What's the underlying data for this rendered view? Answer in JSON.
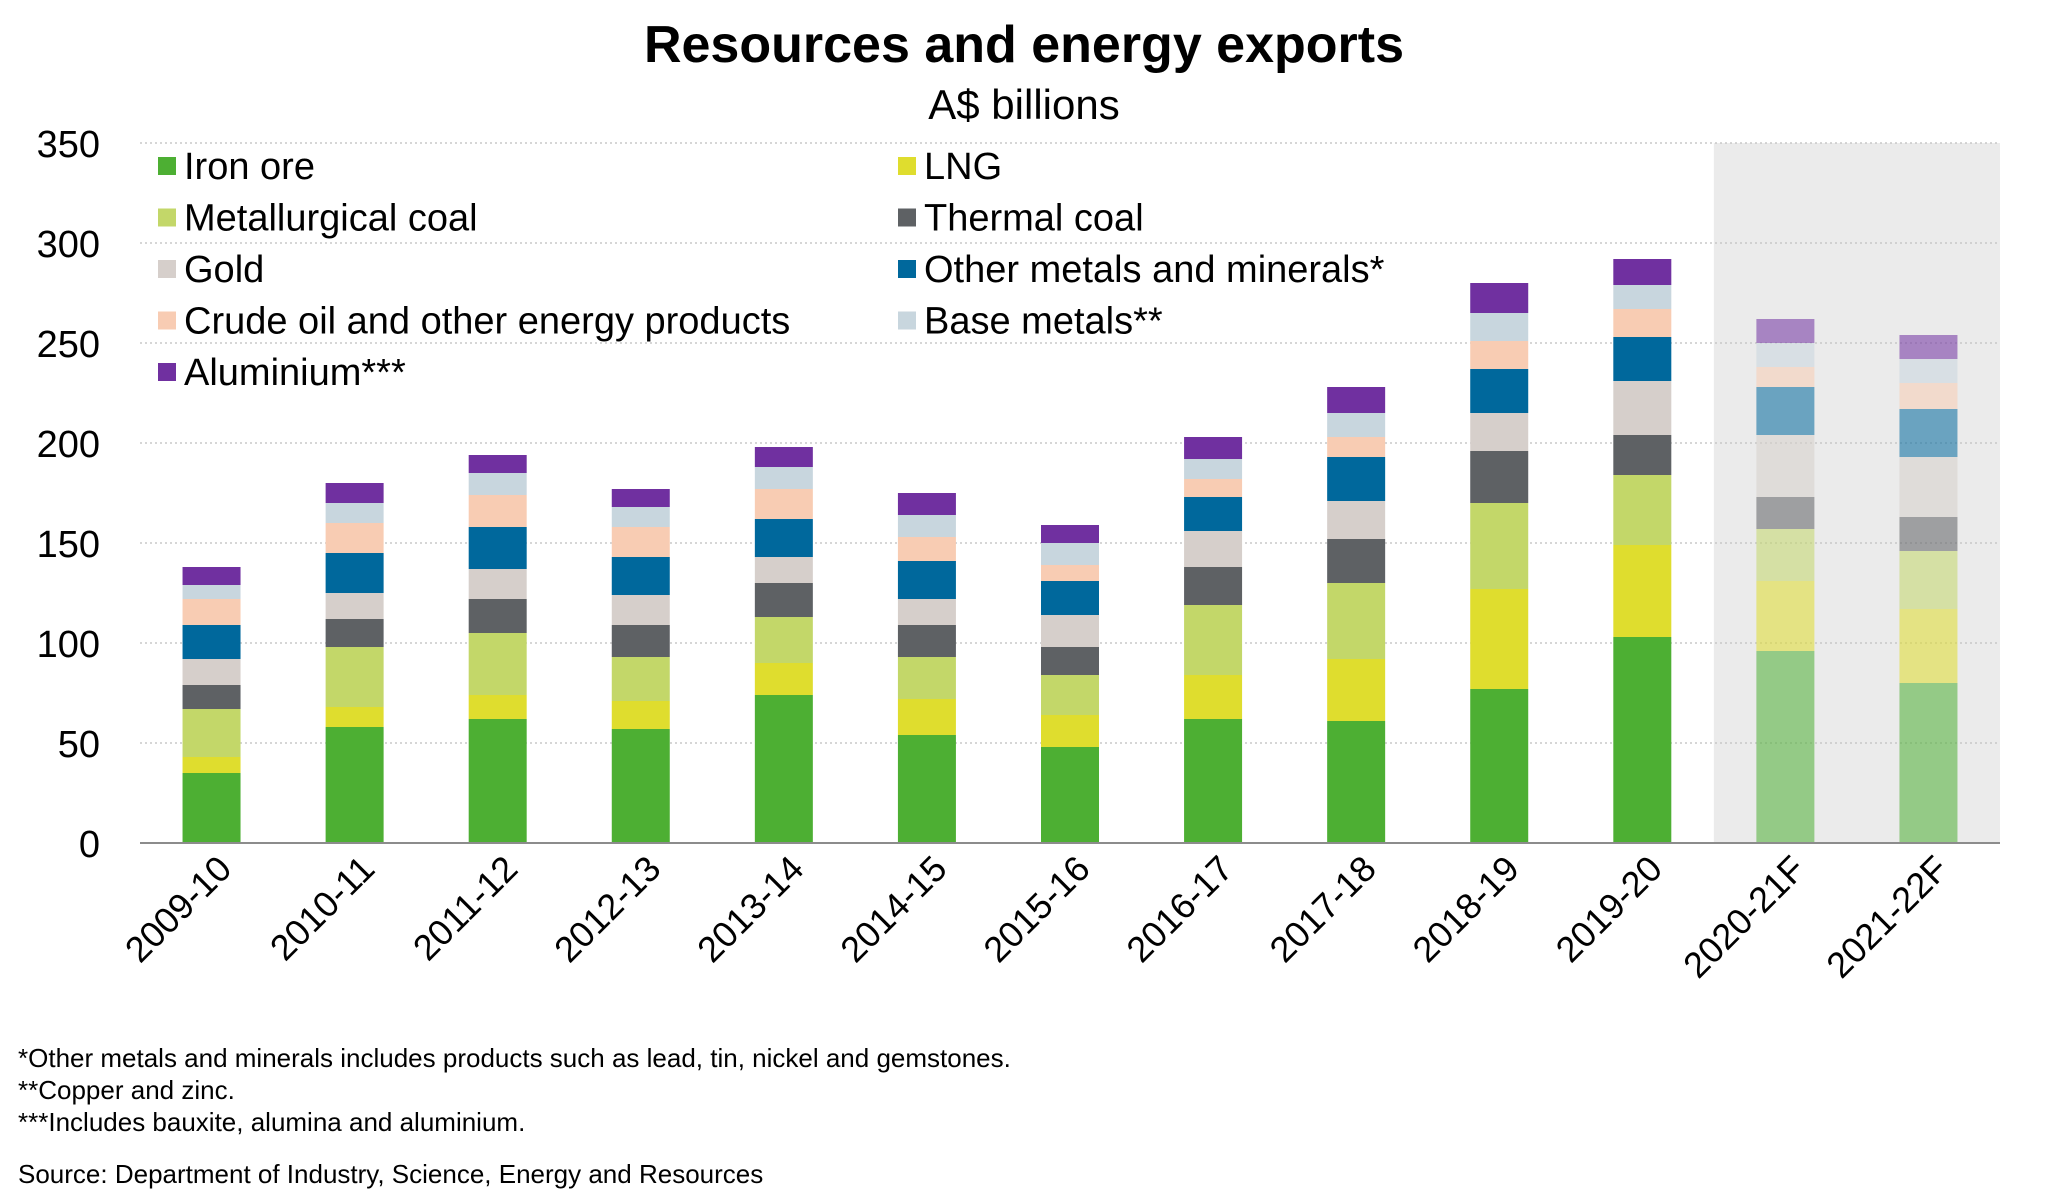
{
  "chart_data": {
    "type": "bar",
    "stacked": true,
    "title": "Resources and energy exports",
    "subtitle": "A$ billions",
    "xlabel": "",
    "ylabel": "",
    "ylim": [
      0,
      350
    ],
    "yticks": [
      0,
      50,
      100,
      150,
      200,
      250,
      300,
      350
    ],
    "grid": true,
    "legend_position": "top-left",
    "categories": [
      "2009-10",
      "2010-11",
      "2011-12",
      "2012-13",
      "2013-14",
      "2014-15",
      "2015-16",
      "2016-17",
      "2017-18",
      "2018-19",
      "2019-20",
      "2020-21F",
      "2021-22F"
    ],
    "forecast_categories": [
      "2020-21F",
      "2021-22F"
    ],
    "series": [
      {
        "name": "Iron ore",
        "color": "#4daf33",
        "values": [
          35,
          58,
          62,
          57,
          74,
          54,
          48,
          62,
          61,
          77,
          103,
          96,
          80
        ]
      },
      {
        "name": "LNG",
        "color": "#dfdd2e",
        "values": [
          8,
          10,
          12,
          14,
          16,
          18,
          16,
          22,
          31,
          50,
          46,
          35,
          37
        ]
      },
      {
        "name": "Metallurgical coal",
        "color": "#c3d769",
        "values": [
          24,
          30,
          31,
          22,
          23,
          21,
          20,
          35,
          38,
          43,
          35,
          26,
          29
        ]
      },
      {
        "name": "Thermal coal",
        "color": "#5e6164",
        "values": [
          12,
          14,
          17,
          16,
          17,
          16,
          14,
          19,
          22,
          26,
          20,
          16,
          17
        ]
      },
      {
        "name": "Gold",
        "color": "#d6cfcb",
        "values": [
          13,
          13,
          15,
          15,
          13,
          13,
          16,
          18,
          19,
          19,
          27,
          31,
          30
        ]
      },
      {
        "name": "Other metals and minerals*",
        "color": "#00689c",
        "values": [
          17,
          20,
          21,
          19,
          19,
          19,
          17,
          17,
          22,
          22,
          22,
          24,
          24
        ]
      },
      {
        "name": "Crude oil and other energy products",
        "color": "#f8ccb3",
        "values": [
          13,
          15,
          16,
          15,
          15,
          12,
          8,
          9,
          10,
          14,
          14,
          10,
          13
        ]
      },
      {
        "name": "Base metals**",
        "color": "#c8d6de",
        "values": [
          7,
          10,
          11,
          10,
          11,
          11,
          11,
          10,
          12,
          14,
          12,
          12,
          12
        ]
      },
      {
        "name": "Aluminium***",
        "color": "#7030a0",
        "values": [
          9,
          10,
          9,
          9,
          10,
          11,
          9,
          11,
          13,
          15,
          13,
          12,
          12
        ]
      }
    ]
  },
  "footnotes": [
    "*Other metals and minerals includes products such as lead, tin, nickel and gemstones.",
    "**Copper and zinc.",
    "***Includes bauxite, alumina and aluminium."
  ],
  "source": "Source: Department of Industry, Science, Energy and Resources"
}
